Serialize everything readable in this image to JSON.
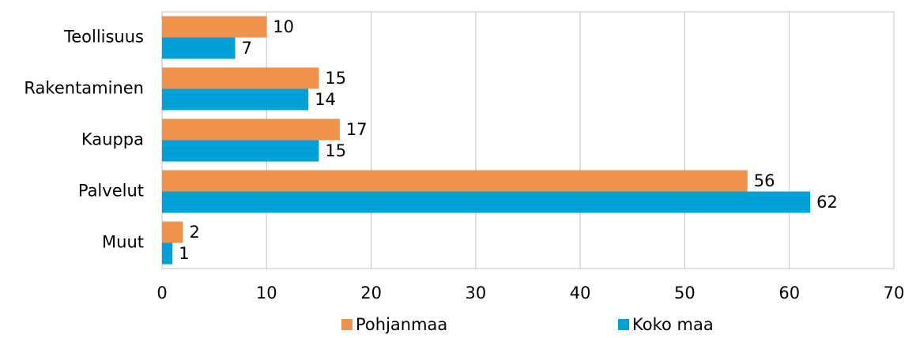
{
  "chart_data": {
    "type": "bar",
    "orientation": "horizontal",
    "categories": [
      "Teollisuus",
      "Rakentaminen",
      "Kauppa",
      "Palvelut",
      "Muut"
    ],
    "series": [
      {
        "name": "Pohjanmaa",
        "color": "#f0924a",
        "values": [
          10,
          15,
          17,
          56,
          2
        ]
      },
      {
        "name": "Koko maa",
        "color": "#00a0d8",
        "values": [
          7,
          14,
          15,
          62,
          1
        ]
      }
    ],
    "xlim": [
      0,
      70
    ],
    "xticks": [
      0,
      10,
      20,
      30,
      40,
      50,
      60,
      70
    ],
    "grid": true,
    "legend": "bottom"
  }
}
